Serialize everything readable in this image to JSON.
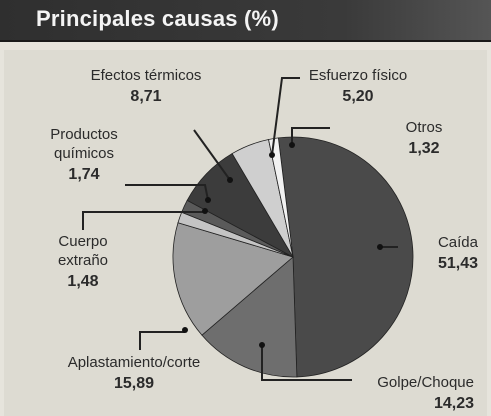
{
  "header": {
    "title": "Principales causas (%)"
  },
  "chart_data": {
    "type": "pie",
    "title": "Principales causas (%)",
    "slices": [
      {
        "label": "Caída",
        "value": 51.43,
        "display": "51,43",
        "color": "#4a4a4a"
      },
      {
        "label": "Golpe/Choque",
        "value": 14.23,
        "display": "14,23",
        "color": "#6e6e6e"
      },
      {
        "label": "Aplastamiento/corte",
        "value": 15.89,
        "display": "15,89",
        "color": "#9e9e9e"
      },
      {
        "label": "Cuerpo extraño",
        "value": 1.48,
        "display": "1,48",
        "color": "#c4c4c4"
      },
      {
        "label": "Productos químicos",
        "value": 1.74,
        "display": "1,74",
        "color": "#5a5a5a"
      },
      {
        "label": "Efectos térmicos",
        "value": 8.71,
        "display": "8,71",
        "color": "#3c3c3c"
      },
      {
        "label": "Esfuerzo físico",
        "value": 5.2,
        "display": "5,20",
        "color": "#cfcfcf"
      },
      {
        "label": "Otros",
        "value": 1.32,
        "display": "1,32",
        "color": "#f1f1f1"
      }
    ]
  }
}
